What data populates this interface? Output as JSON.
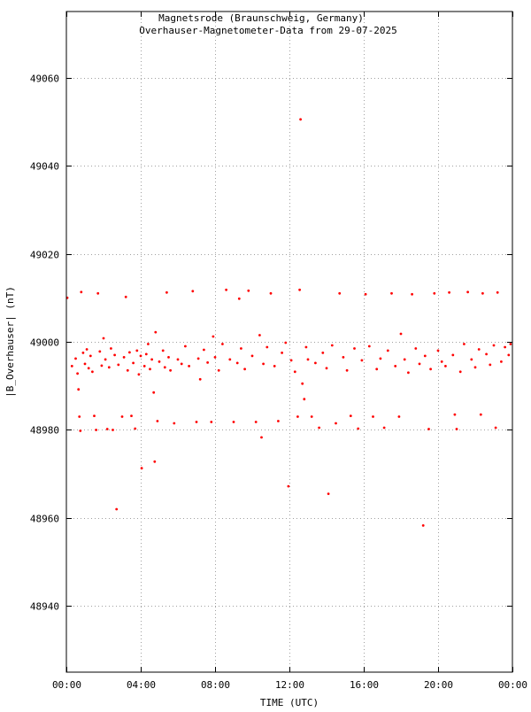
{
  "chart_data": {
    "type": "scatter",
    "title": "Magnetsrode (Braunschweig, Germany)",
    "subtitle": "Overhauser-Magnetometer-Data from 29-07-2025",
    "xlabel": "TIME (UTC)",
    "ylabel": "|B_Overhauser| (nT)",
    "xlim": [
      0,
      24
    ],
    "ylim": [
      48925,
      49075
    ],
    "x_ticks": [
      {
        "value": 0,
        "label": "00:00"
      },
      {
        "value": 4,
        "label": "04:00"
      },
      {
        "value": 8,
        "label": "08:00"
      },
      {
        "value": 12,
        "label": "12:00"
      },
      {
        "value": 16,
        "label": "16:00"
      },
      {
        "value": 20,
        "label": "20:00"
      },
      {
        "value": 24,
        "label": "00:00"
      }
    ],
    "y_ticks": [
      {
        "value": 48940,
        "label": "48940"
      },
      {
        "value": 48960,
        "label": "48960"
      },
      {
        "value": 48980,
        "label": "48980"
      },
      {
        "value": 49000,
        "label": "49000"
      },
      {
        "value": 49020,
        "label": "49020"
      },
      {
        "value": 49040,
        "label": "49040"
      },
      {
        "value": 49060,
        "label": "49060"
      }
    ],
    "grid": true,
    "marker_color": "#ff0000",
    "series": [
      {
        "points": [
          [
            0.05,
            49010.0
          ],
          [
            0.3,
            48994.5
          ],
          [
            0.5,
            48996.2
          ],
          [
            0.6,
            48992.8
          ],
          [
            0.65,
            48989.2
          ],
          [
            0.7,
            48983.0
          ],
          [
            0.75,
            48979.8
          ],
          [
            0.8,
            49011.3
          ],
          [
            0.9,
            48997.5
          ],
          [
            1.0,
            48995.0
          ],
          [
            1.1,
            48998.3
          ],
          [
            1.2,
            48994.0
          ],
          [
            1.3,
            48996.8
          ],
          [
            1.4,
            48993.2
          ],
          [
            1.5,
            48983.2
          ],
          [
            1.6,
            48980.0
          ],
          [
            1.7,
            49011.0
          ],
          [
            1.8,
            48997.8
          ],
          [
            1.9,
            48994.6
          ],
          [
            2.0,
            49000.8
          ],
          [
            2.1,
            48996.0
          ],
          [
            2.2,
            48980.2
          ],
          [
            2.3,
            48994.2
          ],
          [
            2.4,
            48998.5
          ],
          [
            2.5,
            48980.0
          ],
          [
            2.6,
            48997.0
          ],
          [
            2.7,
            48962.0
          ],
          [
            2.8,
            48994.8
          ],
          [
            3.0,
            48983.0
          ],
          [
            3.1,
            48996.5
          ],
          [
            3.2,
            49010.2
          ],
          [
            3.3,
            48993.5
          ],
          [
            3.4,
            48997.6
          ],
          [
            3.5,
            48983.2
          ],
          [
            3.6,
            48995.2
          ],
          [
            3.7,
            48980.3
          ],
          [
            3.8,
            48998.0
          ],
          [
            3.9,
            48992.6
          ],
          [
            4.0,
            48996.8
          ],
          [
            4.05,
            48971.3
          ],
          [
            4.2,
            48994.5
          ],
          [
            4.3,
            48997.2
          ],
          [
            4.4,
            48999.5
          ],
          [
            4.5,
            48993.8
          ],
          [
            4.6,
            48996.0
          ],
          [
            4.7,
            48988.5
          ],
          [
            4.75,
            48972.8
          ],
          [
            4.8,
            49002.2
          ],
          [
            4.9,
            48982.0
          ],
          [
            5.0,
            48995.5
          ],
          [
            5.2,
            48998.0
          ],
          [
            5.3,
            48994.2
          ],
          [
            5.4,
            49011.2
          ],
          [
            5.5,
            48996.5
          ],
          [
            5.6,
            48993.5
          ],
          [
            5.8,
            48981.5
          ],
          [
            6.0,
            48996.0
          ],
          [
            6.2,
            48995.0
          ],
          [
            6.4,
            48999.0
          ],
          [
            6.6,
            48994.5
          ],
          [
            6.8,
            49011.5
          ],
          [
            7.0,
            48981.8
          ],
          [
            7.1,
            48996.2
          ],
          [
            7.2,
            48991.5
          ],
          [
            7.4,
            48998.2
          ],
          [
            7.6,
            48995.3
          ],
          [
            7.8,
            48981.8
          ],
          [
            7.9,
            49001.2
          ],
          [
            8.0,
            48996.5
          ],
          [
            8.2,
            48993.5
          ],
          [
            8.4,
            48999.5
          ],
          [
            8.6,
            49011.8
          ],
          [
            8.8,
            48996.0
          ],
          [
            9.0,
            48981.8
          ],
          [
            9.2,
            48995.2
          ],
          [
            9.3,
            49009.8
          ],
          [
            9.4,
            48998.5
          ],
          [
            9.6,
            48993.8
          ],
          [
            9.8,
            49011.6
          ],
          [
            10.0,
            48996.8
          ],
          [
            10.2,
            48981.8
          ],
          [
            10.4,
            49001.5
          ],
          [
            10.5,
            48978.3
          ],
          [
            10.6,
            48995.0
          ],
          [
            10.8,
            48998.8
          ],
          [
            11.0,
            49011.0
          ],
          [
            11.2,
            48994.5
          ],
          [
            11.4,
            48982.0
          ],
          [
            11.6,
            48997.5
          ],
          [
            11.8,
            48999.8
          ],
          [
            11.95,
            48967.2
          ],
          [
            12.1,
            48995.8
          ],
          [
            12.3,
            48993.2
          ],
          [
            12.45,
            48983.0
          ],
          [
            12.55,
            49011.8
          ],
          [
            12.6,
            49050.5
          ],
          [
            12.7,
            48990.5
          ],
          [
            12.8,
            48987.0
          ],
          [
            12.9,
            48998.8
          ],
          [
            13.0,
            48996.0
          ],
          [
            13.2,
            48983.0
          ],
          [
            13.4,
            48995.2
          ],
          [
            13.6,
            48980.5
          ],
          [
            13.8,
            48997.5
          ],
          [
            14.0,
            48994.0
          ],
          [
            14.1,
            48965.5
          ],
          [
            14.3,
            48999.2
          ],
          [
            14.5,
            48981.5
          ],
          [
            14.7,
            49011.0
          ],
          [
            14.9,
            48996.5
          ],
          [
            15.1,
            48993.5
          ],
          [
            15.3,
            48983.2
          ],
          [
            15.5,
            48998.5
          ],
          [
            15.7,
            48980.3
          ],
          [
            15.9,
            48995.8
          ],
          [
            16.1,
            49010.8
          ],
          [
            16.3,
            48999.0
          ],
          [
            16.5,
            48983.0
          ],
          [
            16.7,
            48993.8
          ],
          [
            16.9,
            48996.2
          ],
          [
            17.1,
            48980.5
          ],
          [
            17.3,
            48998.0
          ],
          [
            17.5,
            49011.0
          ],
          [
            17.7,
            48994.5
          ],
          [
            17.9,
            48983.0
          ],
          [
            18.0,
            49001.8
          ],
          [
            18.2,
            48996.0
          ],
          [
            18.4,
            48993.0
          ],
          [
            18.6,
            49010.8
          ],
          [
            18.8,
            48998.5
          ],
          [
            19.0,
            48995.0
          ],
          [
            19.2,
            48958.3
          ],
          [
            19.3,
            48996.8
          ],
          [
            19.5,
            48980.2
          ],
          [
            19.6,
            48993.8
          ],
          [
            19.8,
            49011.0
          ],
          [
            20.0,
            48998.0
          ],
          [
            20.2,
            48995.5
          ],
          [
            20.4,
            48994.5
          ],
          [
            20.6,
            49011.2
          ],
          [
            20.8,
            48997.0
          ],
          [
            20.9,
            48983.5
          ],
          [
            21.0,
            48980.2
          ],
          [
            21.2,
            48993.2
          ],
          [
            21.4,
            48999.5
          ],
          [
            21.6,
            49011.3
          ],
          [
            21.8,
            48996.0
          ],
          [
            22.0,
            48994.2
          ],
          [
            22.2,
            48998.3
          ],
          [
            22.3,
            48983.5
          ],
          [
            22.4,
            49011.0
          ],
          [
            22.6,
            48997.2
          ],
          [
            22.8,
            48994.8
          ],
          [
            23.0,
            48999.2
          ],
          [
            23.1,
            48980.5
          ],
          [
            23.2,
            49011.2
          ],
          [
            23.4,
            48995.5
          ],
          [
            23.6,
            48998.8
          ],
          [
            23.8,
            48997.0
          ],
          [
            23.9,
            48999.5
          ]
        ]
      }
    ]
  }
}
